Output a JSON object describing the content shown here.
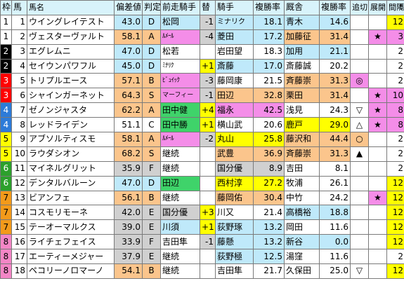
{
  "headers": [
    "枠",
    "馬",
    "馬名",
    "偏差値",
    "判定",
    "前走騎手",
    "替",
    "騎手",
    "複勝率",
    "厩舎",
    "複勝率",
    "追切",
    "展開",
    "間隔"
  ],
  "sort_icon": "sort-arrow-icon",
  "colors": {
    "header": "#d8f3fb",
    "blue": "#bfe9fa",
    "orange": "#fbc58c",
    "pink": "#f48de8",
    "green": "#3fd36a",
    "yellow": "#ffff00",
    "gray": "#d0d0d0",
    "white": "#ffffff"
  },
  "frame_colors": [
    "#ffffff",
    "#000000",
    "#ff0000",
    "#2d7bd8",
    "#ffff00",
    "#2ca02c",
    "#f39a1a",
    "#f386c6"
  ],
  "frame_text_colors": [
    "#000000",
    "#ffffff",
    "#ffffff",
    "#ffffff",
    "#000000",
    "#ffffff",
    "#000000",
    "#000000"
  ],
  "rows": [
    {
      "waku": "1",
      "umaban": "1",
      "name": "ウイングレイテスト",
      "score": "43.0",
      "rank": "D",
      "prev": "松岡",
      "change": "-1",
      "jockey": "ミナリク",
      "jrate": "18.1",
      "stable": "青木",
      "srate": "14.6",
      "oikiri": "",
      "tenkai": "",
      "kankaku": "12",
      "bg": {
        "score": "blue",
        "prev": "blue",
        "change": "gray",
        "jockey": "blue",
        "stable": "blue",
        "kankaku": "yellow"
      }
    },
    {
      "waku": "1",
      "umaban": "2",
      "name": "ヴェスターヴァルト",
      "score": "58.1",
      "rank": "A",
      "prev": "ﾙﾒｰﾙ",
      "change": "-4",
      "jockey": "菱田",
      "jrate": "17.2",
      "stable": "加藤征",
      "srate": "31.4",
      "oikiri": "",
      "tenkai": "★",
      "kankaku": "3",
      "bg": {
        "score": "orange",
        "prev": "pink",
        "change": "gray",
        "jockey": "blue",
        "stable": "orange",
        "tenkai": "pink",
        "kankaku": "pink"
      }
    },
    {
      "waku": "2",
      "umaban": "3",
      "name": "エグレムニ",
      "score": "47.0",
      "rank": "D",
      "prev": "松若",
      "change": "",
      "jockey": "岩田望",
      "jrate": "18.3",
      "stable": "加用",
      "srate": "21.1",
      "oikiri": "",
      "tenkai": "",
      "kankaku": "2",
      "bg": {
        "score": "blue",
        "jockey": "white",
        "stable": "blue"
      }
    },
    {
      "waku": "2",
      "umaban": "4",
      "name": "セイウンパワフル",
      "score": "45.0",
      "rank": "D",
      "prev": "ﾐﾅﾘｸ",
      "change": "+1",
      "jockey": "斎藤",
      "jrate": "17.0",
      "stable": "斎藤誠",
      "srate": "20.2",
      "oikiri": "",
      "tenkai": "",
      "kankaku": "2",
      "bg": {
        "score": "blue",
        "change": "yellow",
        "jockey": "blue"
      }
    },
    {
      "waku": "3",
      "umaban": "5",
      "name": "トリプルエース",
      "score": "57.1",
      "rank": "B",
      "prev": "ﾋﾞｭｲｯｸ",
      "change": "-3",
      "jockey": "藤岡康",
      "jrate": "21.5",
      "stable": "斉藤崇",
      "srate": "31.3",
      "oikiri": "◎",
      "tenkai": "",
      "kankaku": "2",
      "bg": {
        "score": "orange",
        "prev": "pink",
        "change": "gray",
        "stable": "orange",
        "oikiri": "pink"
      }
    },
    {
      "waku": "3",
      "umaban": "6",
      "name": "シャインガーネット",
      "score": "64.3",
      "rank": "S",
      "prev": "マーフィー",
      "change": "-1",
      "jockey": "田辺",
      "jrate": "32.8",
      "stable": "栗田",
      "srate": "31.4",
      "oikiri": "",
      "tenkai": "★",
      "kankaku": "10",
      "bg": {
        "score": "orange",
        "prev": "pink",
        "change": "gray",
        "jockey": "orange",
        "stable": "orange",
        "tenkai": "pink",
        "kankaku": "pink"
      }
    },
    {
      "waku": "4",
      "umaban": "7",
      "name": "ゼノンジャスタ",
      "score": "62.2",
      "rank": "A",
      "prev": "田中健",
      "change": "+4",
      "jockey": "福永",
      "jrate": "42.5",
      "stable": "浅見",
      "srate": "24.3",
      "oikiri": "▽",
      "tenkai": "★",
      "kankaku": "8",
      "bg": {
        "score": "orange",
        "prev": "green",
        "change": "yellow",
        "jockey": "pink",
        "tenkai": "pink",
        "kankaku": "pink"
      }
    },
    {
      "waku": "4",
      "umaban": "8",
      "name": "レッドライデン",
      "score": "51.1",
      "rank": "C",
      "prev": "田中勝",
      "change": "+1",
      "jockey": "横山武",
      "jrate": "20.6",
      "stable": "鹿戸",
      "srate": "29.0",
      "oikiri": "△",
      "tenkai": "★",
      "kankaku": "8",
      "bg": {
        "score": "white",
        "prev": "green",
        "change": "yellow",
        "stable": "yellow",
        "tenkai": "pink",
        "kankaku": "pink"
      }
    },
    {
      "waku": "5",
      "umaban": "9",
      "name": "アブソルティスモ",
      "score": "58.1",
      "rank": "A",
      "prev": "ﾙﾒｰﾙ",
      "change": "-2",
      "jockey": "丸山",
      "jrate": "25.8",
      "stable": "藤沢和",
      "srate": "44.4",
      "oikiri": "○",
      "tenkai": "",
      "kankaku": "2",
      "bg": {
        "score": "orange",
        "prev": "pink",
        "change": "gray",
        "jockey": "yellow",
        "stable": "orange",
        "oikiri": "orange"
      }
    },
    {
      "waku": "5",
      "umaban": "10",
      "name": "ラウダシオン",
      "score": "68.2",
      "rank": "S",
      "prev": "継続",
      "change": "",
      "jockey": "武豊",
      "jrate": "36.9",
      "stable": "斉藤崇",
      "srate": "31.3",
      "oikiri": "▲",
      "tenkai": "",
      "kankaku": "2",
      "bg": {
        "score": "orange",
        "jockey": "orange",
        "stable": "orange"
      }
    },
    {
      "waku": "6",
      "umaban": "11",
      "name": "マイネルグリット",
      "score": "35.9",
      "rank": "F",
      "prev": "継続",
      "change": "",
      "jockey": "国分優",
      "jrate": "8.9",
      "stable": "吉田",
      "srate": "8.1",
      "oikiri": "",
      "tenkai": "",
      "kankaku": "2",
      "bg": {
        "score": "gray",
        "jockey": "gray"
      }
    },
    {
      "waku": "6",
      "umaban": "12",
      "name": "デンタルバルーン",
      "score": "47.0",
      "rank": "D",
      "prev": "田辺",
      "change": "",
      "jockey": "西村淳",
      "jrate": "27.2",
      "stable": "牧浦",
      "srate": "26.1",
      "oikiri": "",
      "tenkai": "",
      "kankaku": "12",
      "bg": {
        "score": "blue",
        "prev": "green",
        "jockey": "yellow",
        "kankaku": "yellow"
      }
    },
    {
      "waku": "7",
      "umaban": "13",
      "name": "ビアンフェ",
      "score": "56.1",
      "rank": "B",
      "prev": "継続",
      "change": "",
      "jockey": "藤岡佑",
      "jrate": "30.4",
      "stable": "中竹",
      "srate": "24.2",
      "oikiri": "",
      "tenkai": "★",
      "kankaku": "12",
      "bg": {
        "score": "orange",
        "jockey": "orange",
        "tenkai": "pink",
        "kankaku": "yellow"
      }
    },
    {
      "waku": "7",
      "umaban": "14",
      "name": "コスモリモーネ",
      "score": "42.0",
      "rank": "E",
      "prev": "国分優",
      "change": "+3",
      "jockey": "川又",
      "jrate": "21.4",
      "stable": "高橋裕",
      "srate": "18.8",
      "oikiri": "",
      "tenkai": "",
      "kankaku": "12",
      "bg": {
        "score": "gray",
        "prev": "gray",
        "change": "yellow",
        "stable": "blue",
        "kankaku": "yellow"
      }
    },
    {
      "waku": "7",
      "umaban": "15",
      "name": "テーオーマルクス",
      "score": "39.0",
      "rank": "E",
      "prev": "川須",
      "change": "+1",
      "jockey": "荻野琢",
      "jrate": "13.2",
      "stable": "岡田",
      "srate": "11.6",
      "oikiri": "",
      "tenkai": "",
      "kankaku": "12",
      "bg": {
        "score": "gray",
        "prev": "blue",
        "change": "yellow",
        "jockey": "blue",
        "kankaku": "yellow"
      }
    },
    {
      "waku": "8",
      "umaban": "16",
      "name": "ライチェフェイス",
      "score": "33.9",
      "rank": "F",
      "prev": "吉田隼",
      "change": "-1",
      "jockey": "藤懸",
      "jrate": "13.2",
      "stable": "新谷",
      "srate": "0.0",
      "oikiri": "",
      "tenkai": "",
      "kankaku": "12",
      "bg": {
        "score": "gray",
        "change": "gray",
        "jockey": "blue",
        "stable": "blue",
        "kankaku": "yellow"
      }
    },
    {
      "waku": "8",
      "umaban": "17",
      "name": "エーティーメジャー",
      "score": "37.9",
      "rank": "E",
      "prev": "継続",
      "change": "",
      "jockey": "荻野極",
      "jrate": "12.5",
      "stable": "湯窪",
      "srate": "11.6",
      "oikiri": "",
      "tenkai": "",
      "kankaku": "2",
      "bg": {
        "score": "gray",
        "jockey": "blue"
      }
    },
    {
      "waku": "8",
      "umaban": "18",
      "name": "ペコリーノロマーノ",
      "score": "54.1",
      "rank": "B",
      "prev": "継続",
      "change": "",
      "jockey": "吉田隼",
      "jrate": "21.7",
      "stable": "久保田",
      "srate": "25.0",
      "oikiri": "▽",
      "tenkai": "",
      "kankaku": "12",
      "bg": {
        "score": "orange",
        "kankaku": "yellow"
      }
    }
  ]
}
